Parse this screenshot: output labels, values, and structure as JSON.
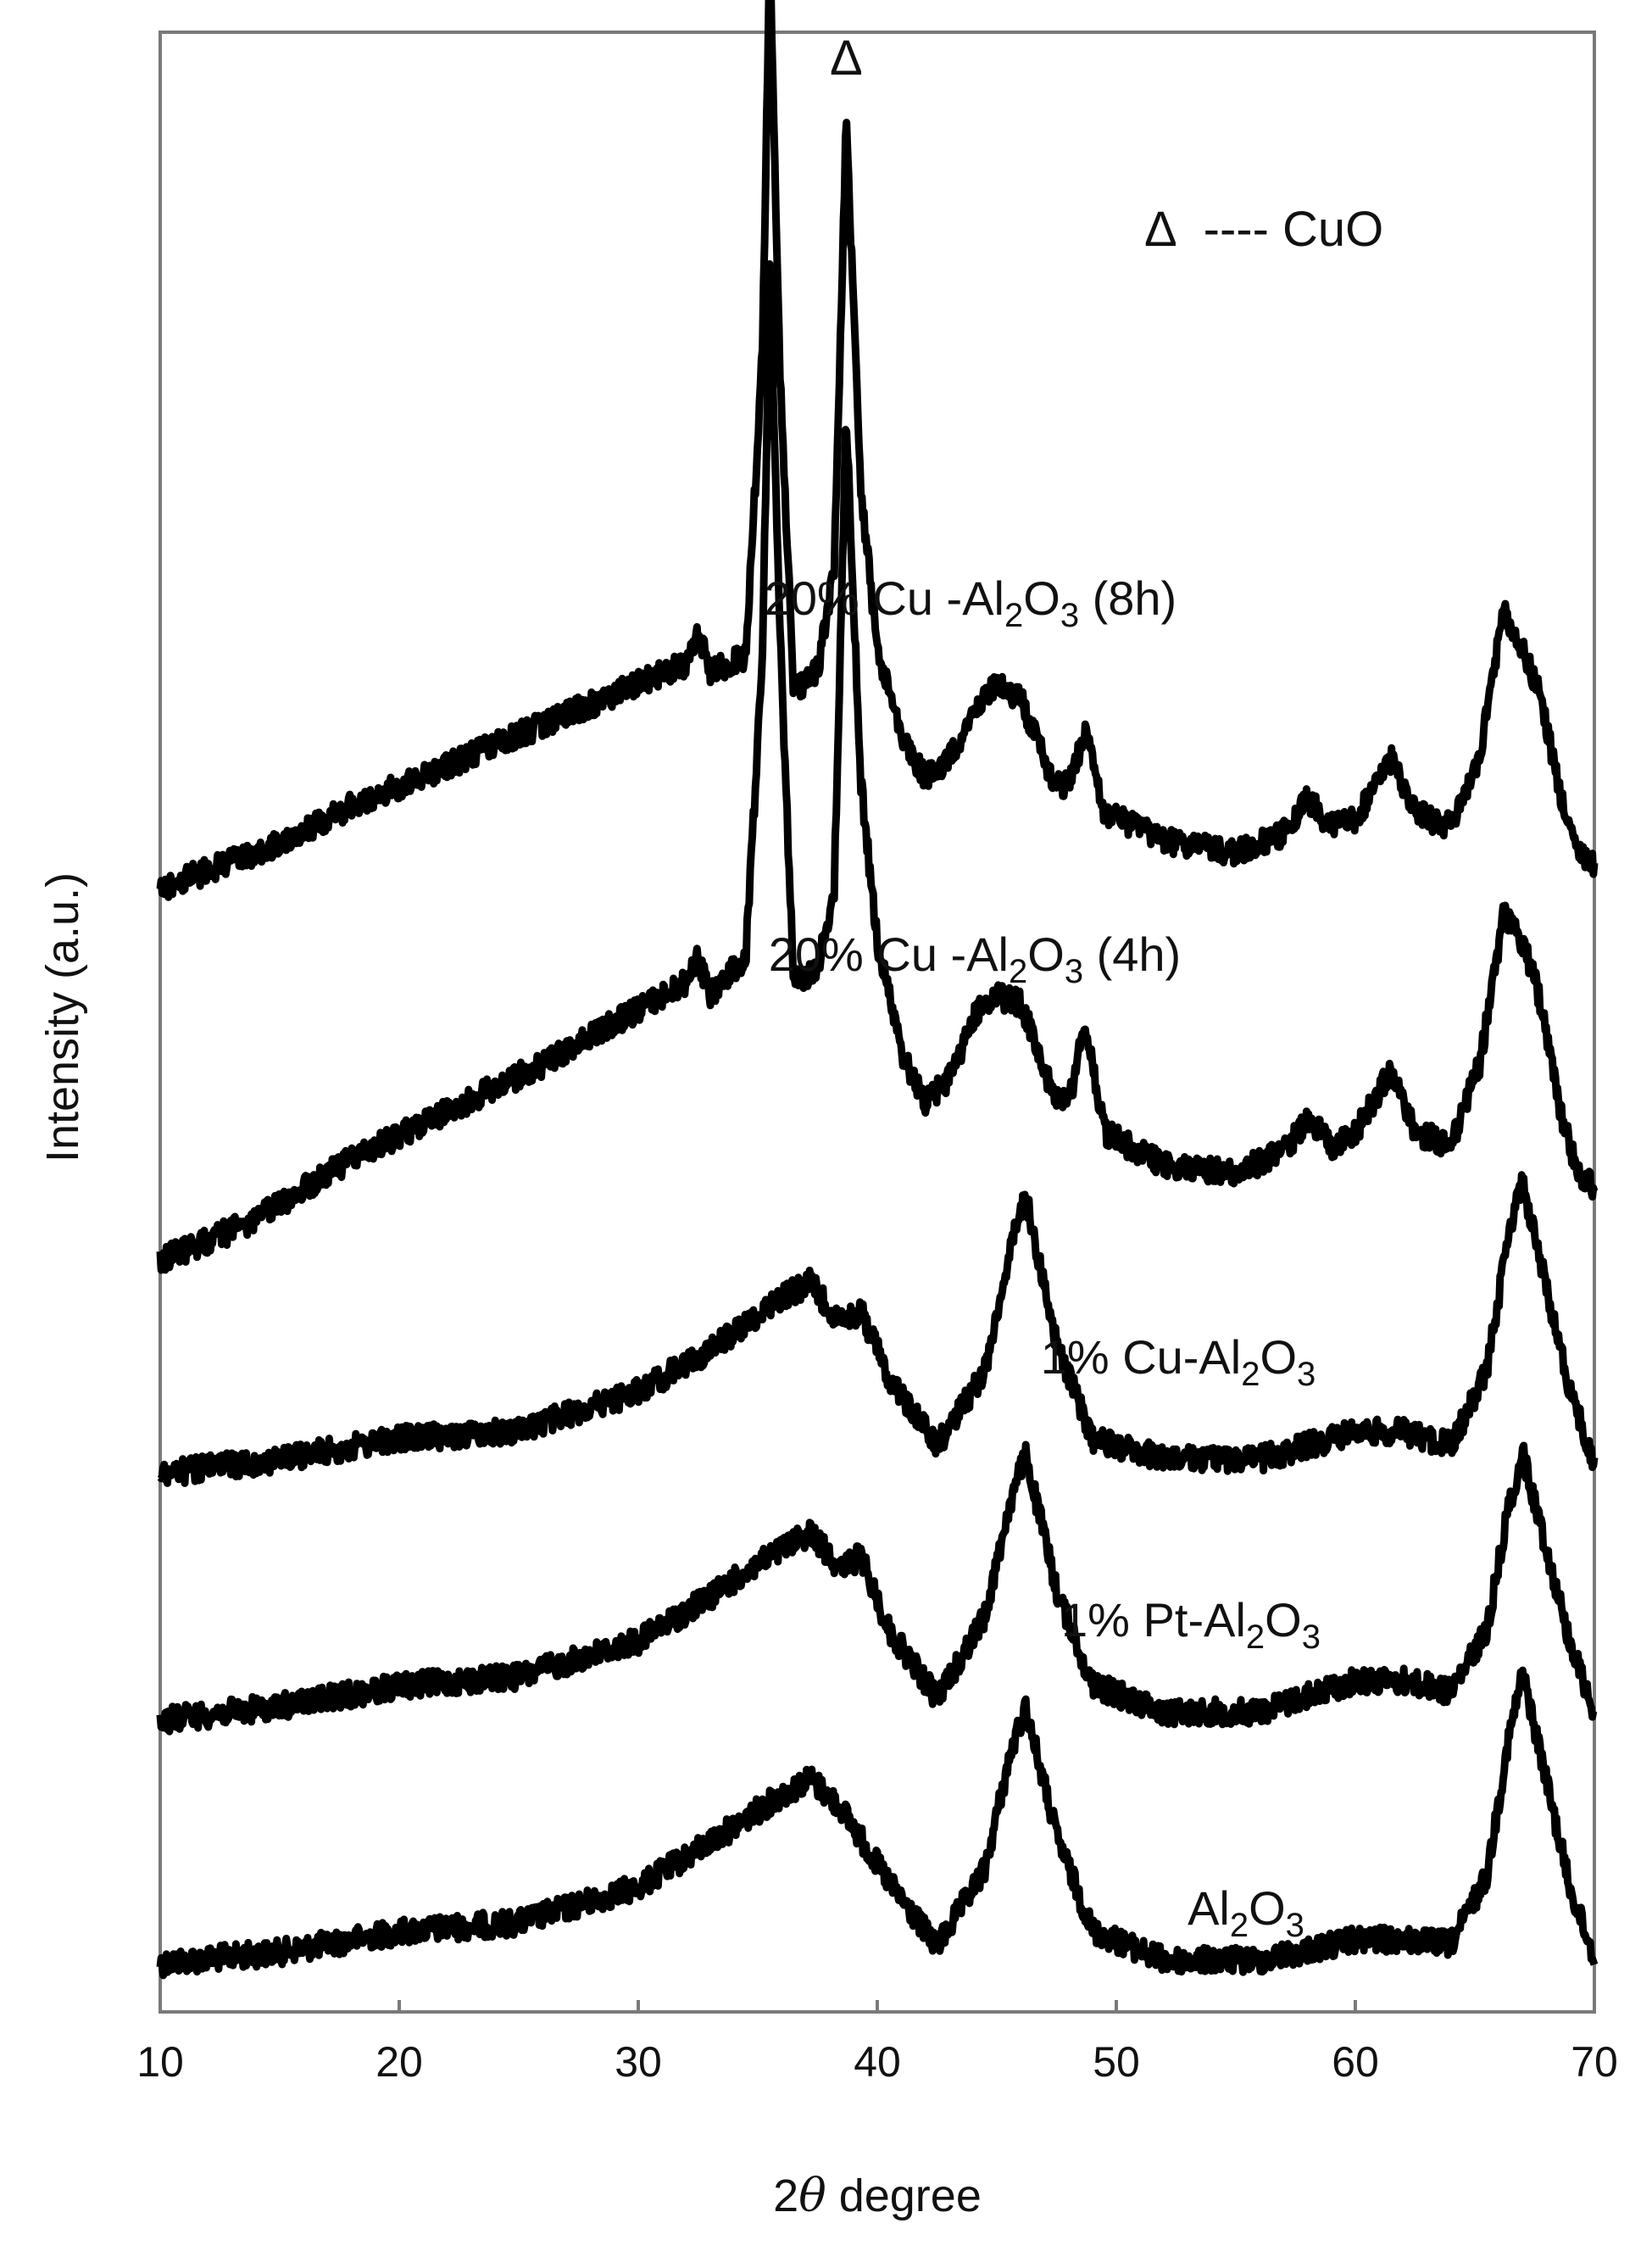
{
  "chart_data": {
    "type": "line",
    "xlabel": "2θ degree",
    "xlabel_prefix": "2",
    "xlabel_theta": "θ",
    "xlabel_suffix": " degree",
    "ylabel": "Intensity (a.u.)",
    "xlim": [
      10,
      70
    ],
    "xticks": [
      10,
      20,
      30,
      40,
      50,
      60,
      70
    ],
    "xtick_labels": [
      "10",
      "20",
      "30",
      "40",
      "50",
      "60",
      "70"
    ],
    "yticks_shown": false,
    "grid": false,
    "line_color": "#000000",
    "marker_symbol": "Δ",
    "legend": {
      "symbol": "Δ",
      "text": "---- CuO",
      "placement": "top-right"
    },
    "marked_peaks": [
      35.5,
      38.7
    ],
    "series": [
      {
        "name": "Al2O3",
        "label_parts": [
          "Al",
          "2",
          "O",
          "3"
        ],
        "x": [
          10,
          15,
          20,
          25,
          30,
          33,
          36,
          37.2,
          38.5,
          40.5,
          42.5,
          44.5,
          45.5,
          46.2,
          47.5,
          49,
          52,
          56,
          60,
          62,
          64,
          65.5,
          66.4,
          67,
          68,
          69,
          70
        ],
        "y": [
          0.6,
          1.4,
          2.9,
          3.6,
          6.2,
          9.5,
          13.0,
          14.2,
          12.0,
          6.5,
          1.8,
          7.5,
          15.5,
          19.5,
          10.0,
          3.0,
          0.8,
          0.8,
          2.3,
          2.3,
          2.0,
          7.0,
          17.0,
          22.0,
          14.0,
          6.0,
          1.0
        ]
      },
      {
        "name": "1% Pt-Al2O3",
        "label_parts": [
          "1% Pt-Al",
          "2",
          "O",
          "3"
        ],
        "x": [
          10,
          15,
          20,
          25,
          30,
          33,
          36,
          37.2,
          38.5,
          39.3,
          40.5,
          42.5,
          44.5,
          45.5,
          46.2,
          47.5,
          49,
          52,
          56,
          60,
          62,
          64,
          65.5,
          66.4,
          67,
          68,
          69,
          70
        ],
        "y": [
          0.4,
          1.4,
          2.9,
          3.6,
          6.2,
          9.5,
          13.0,
          14.2,
          11.5,
          12.5,
          7.0,
          2.0,
          8.0,
          16.0,
          20.0,
          10.0,
          3.0,
          1.0,
          1.0,
          3.3,
          3.3,
          2.5,
          7.0,
          16.0,
          20.0,
          13.0,
          6.0,
          1.0
        ]
      },
      {
        "name": "1% Cu-Al2O3",
        "label_parts": [
          "1% Cu-Al",
          "2",
          "O",
          "3"
        ],
        "x": [
          10,
          15,
          20,
          25,
          30,
          33,
          36,
          37.2,
          38.5,
          39.3,
          40.5,
          42.5,
          44.5,
          45.5,
          46.2,
          47.5,
          49,
          52,
          56,
          60,
          62,
          64,
          65.5,
          66.4,
          67,
          68,
          69,
          70
        ],
        "y": [
          0.4,
          1.5,
          3.0,
          3.6,
          6.5,
          9.5,
          13.5,
          14.5,
          11.5,
          12.5,
          7.5,
          2.5,
          8.0,
          16.5,
          21.0,
          10.0,
          3.0,
          1.5,
          1.5,
          3.5,
          3.5,
          2.5,
          8.0,
          18.0,
          22.0,
          14.0,
          6.5,
          1.0
        ]
      },
      {
        "name": "20% Cu-Al2O3 (4h)",
        "label_parts": [
          "20% Cu -Al",
          "2",
          "O",
          "3",
          " (4h)"
        ],
        "x": [
          10,
          14,
          18,
          22,
          26,
          30,
          32,
          32.5,
          33,
          34.5,
          35.2,
          35.5,
          35.9,
          36.5,
          37.5,
          38.2,
          38.7,
          39.3,
          40,
          41,
          42,
          43,
          44.2,
          45,
          46,
          47.3,
          48,
          48.7,
          49.5,
          52,
          55,
          57,
          58,
          59,
          60,
          61.5,
          62.5,
          64,
          65.2,
          66.2,
          67,
          67.7,
          68.5,
          69.3,
          70
        ],
        "y": [
          0.5,
          3.5,
          8.0,
          11.5,
          15.0,
          19.0,
          21.0,
          23.0,
          20.0,
          23.0,
          45.0,
          74.0,
          48.0,
          21.0,
          22.0,
          28.0,
          63.0,
          36.0,
          24.0,
          16.0,
          12.0,
          14.0,
          19.0,
          20.0,
          19.5,
          13.0,
          12.0,
          18.0,
          10.0,
          7.5,
          7.0,
          8.5,
          11.0,
          9.0,
          10.0,
          14.5,
          10.0,
          9.0,
          15.0,
          26.0,
          24.0,
          20.0,
          12.0,
          7.0,
          6.0
        ]
      },
      {
        "name": "20% Cu-Al2O3 (8h)",
        "label_parts": [
          "20% Cu -Al",
          "2",
          "O",
          "3",
          " (8h)"
        ],
        "x": [
          10,
          14,
          18,
          22,
          26,
          30,
          32,
          32.5,
          33,
          34.5,
          35.2,
          35.5,
          35.9,
          36.5,
          37.5,
          38.2,
          38.7,
          39.3,
          40,
          41,
          42,
          43,
          44.2,
          45,
          46,
          47.3,
          48,
          48.7,
          49.5,
          52,
          55,
          57,
          58,
          59,
          60,
          61.5,
          62.5,
          64,
          65.2,
          66.2,
          67,
          67.7,
          68.5,
          69.3,
          70
        ],
        "y": [
          0.5,
          3.0,
          6.5,
          9.5,
          12.5,
          15.5,
          17.0,
          19.5,
          16.5,
          17.5,
          40.0,
          70.0,
          40.0,
          15.0,
          16.5,
          24.0,
          57.0,
          30.0,
          18.0,
          12.0,
          8.5,
          10.0,
          14.0,
          15.5,
          14.5,
          8.5,
          8.0,
          12.0,
          6.0,
          4.0,
          3.0,
          4.5,
          7.0,
          5.0,
          5.5,
          10.0,
          6.0,
          5.0,
          10.0,
          21.0,
          18.0,
          15.0,
          8.0,
          3.0,
          2.0
        ]
      }
    ]
  }
}
